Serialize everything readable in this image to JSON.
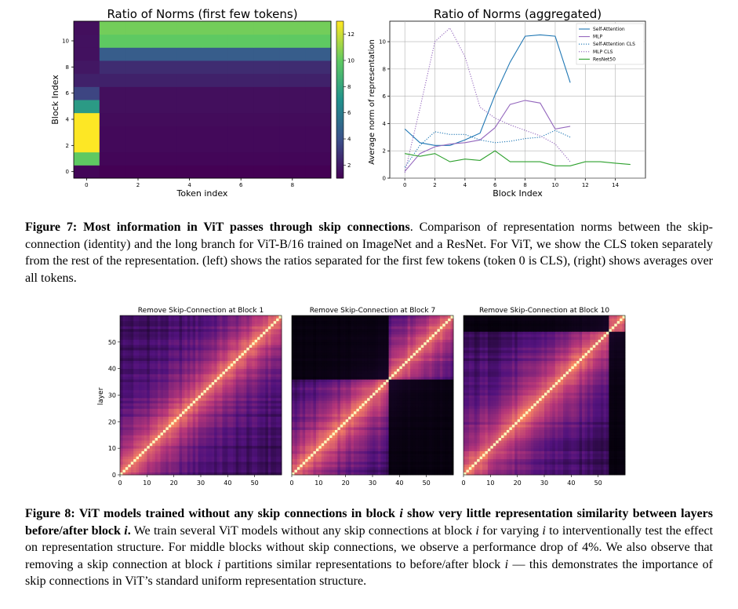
{
  "figure7": {
    "left_panel": {
      "title": "Ratio of Norms (first few tokens)",
      "xlabel": "Token index",
      "ylabel": "Block Index",
      "xticks": [
        "0",
        "2",
        "4",
        "6",
        "8"
      ],
      "yticks": [
        "0",
        "2",
        "4",
        "6",
        "8",
        "10"
      ],
      "colorbar_ticks": [
        "2",
        "4",
        "6",
        "8",
        "10",
        "12"
      ]
    },
    "right_panel": {
      "title": "Ratio of Norms (aggregated)",
      "xlabel": "Block Index",
      "ylabel": "Average norm of representation",
      "xticks": [
        "0",
        "2",
        "4",
        "6",
        "8",
        "10",
        "12",
        "14"
      ],
      "yticks": [
        "0",
        "2",
        "4",
        "6",
        "8",
        "10"
      ]
    },
    "caption_label": "Figure 7: Most information in ViT passes through skip connections",
    "caption_text": ". Comparison of representation norms between the skip-connection (identity) and the long branch for ViT-B/16 trained on ImageNet and a ResNet. For ViT, we show the CLS token separately from the rest of the representation. (left) shows the ratios separated for the first few tokens (token 0 is CLS), (right) shows averages over all tokens."
  },
  "figure8": {
    "panels": [
      {
        "title": "Remove Skip-Connection at Block 1",
        "split": 1
      },
      {
        "title": "Remove Skip-Connection at Block 7",
        "split": 7
      },
      {
        "title": "Remove Skip-Connection at Block 10",
        "split": 10
      }
    ],
    "ylabel": "layer",
    "xticks": [
      "0",
      "10",
      "20",
      "30",
      "40",
      "50"
    ],
    "yticks": [
      "0",
      "10",
      "20",
      "30",
      "40",
      "50"
    ],
    "caption_label_a": "Figure 8: ViT models trained without any skip connections in block ",
    "caption_label_var": "i",
    "caption_label_b": " show very little representation similarity between layers before/after block ",
    "caption_label_c": ".",
    "caption_p1": " We train several ViT models without any skip connections at block ",
    "caption_p2": " for varying ",
    "caption_p3": " to interventionally test the effect on representation structure. For middle blocks without skip connections, we observe a performance drop of ",
    "caption_pct": "4%",
    "caption_p4": ". We also observe that removing a skip connection at block ",
    "caption_p5": " partitions similar representations to before/after block ",
    "caption_p6": " — this demonstrates the importance of skip connections in ViT’s standard uniform representation structure."
  },
  "chart_data": [
    {
      "type": "heatmap",
      "title": "Ratio of Norms (first few tokens)",
      "xlabel": "Token index",
      "ylabel": "Block Index",
      "x": [
        0,
        1,
        2,
        3,
        4,
        5,
        6,
        7,
        8,
        9
      ],
      "y": [
        0,
        1,
        2,
        3,
        4,
        5,
        6,
        7,
        8,
        9,
        10,
        11
      ],
      "colorbar_range": [
        1,
        13
      ],
      "values": [
        [
          1.2,
          1.0,
          1.0,
          1.0,
          1.0,
          1.0,
          1.0,
          1.0,
          1.0,
          1.0
        ],
        [
          10.0,
          1.2,
          1.2,
          1.2,
          1.2,
          1.2,
          1.2,
          1.2,
          1.2,
          1.2
        ],
        [
          13.5,
          1.3,
          1.3,
          1.3,
          1.3,
          1.3,
          1.3,
          1.3,
          1.3,
          1.3
        ],
        [
          13.5,
          1.3,
          1.3,
          1.3,
          1.3,
          1.3,
          1.3,
          1.3,
          1.3,
          1.3
        ],
        [
          13.5,
          1.4,
          1.4,
          1.4,
          1.4,
          1.4,
          1.4,
          1.4,
          1.4,
          1.4
        ],
        [
          7.5,
          1.5,
          1.5,
          1.5,
          1.5,
          1.5,
          1.5,
          1.5,
          1.5,
          1.5
        ],
        [
          3.5,
          1.5,
          1.5,
          1.5,
          1.5,
          1.5,
          1.5,
          1.5,
          1.5,
          1.5
        ],
        [
          2.2,
          2.2,
          2.2,
          2.2,
          2.2,
          2.2,
          2.2,
          2.2,
          2.2,
          2.2
        ],
        [
          1.8,
          2.6,
          2.6,
          2.6,
          2.6,
          2.6,
          2.6,
          2.6,
          2.6,
          2.6
        ],
        [
          1.6,
          4.5,
          4.5,
          4.5,
          4.5,
          4.5,
          4.5,
          4.5,
          4.5,
          4.5
        ],
        [
          1.6,
          10.0,
          10.0,
          10.0,
          10.0,
          10.0,
          10.0,
          10.0,
          10.0,
          10.0
        ],
        [
          1.5,
          10.4,
          10.4,
          10.4,
          10.4,
          10.4,
          10.4,
          10.4,
          10.4,
          10.4
        ]
      ]
    },
    {
      "type": "line",
      "title": "Ratio of Norms (aggregated)",
      "xlabel": "Block Index",
      "ylabel": "Average norm of representation",
      "xlim": [
        -1,
        16
      ],
      "ylim": [
        0,
        11.5
      ],
      "legend_position": "top-right",
      "series": [
        {
          "name": "Self-Attention",
          "color": "#1f77b4",
          "dash": "solid",
          "x": [
            0,
            1,
            2,
            3,
            4,
            5,
            6,
            7,
            8,
            9,
            10,
            11
          ],
          "y": [
            3.6,
            2.6,
            2.4,
            2.4,
            2.8,
            3.3,
            6.1,
            8.5,
            10.4,
            10.5,
            10.4,
            7.0
          ]
        },
        {
          "name": "MLP",
          "color": "#9467bd",
          "dash": "solid",
          "x": [
            0,
            1,
            2,
            3,
            4,
            5,
            6,
            7,
            8,
            9,
            10,
            11
          ],
          "y": [
            0.5,
            1.8,
            2.3,
            2.5,
            2.6,
            2.8,
            3.7,
            5.4,
            5.7,
            5.5,
            3.6,
            3.8
          ]
        },
        {
          "name": "Self-Attention CLS",
          "color": "#1f77b4",
          "dash": "dotted",
          "x": [
            0,
            1,
            2,
            3,
            4,
            5,
            6,
            7,
            8,
            9,
            10,
            11
          ],
          "y": [
            0.8,
            2.4,
            3.4,
            3.2,
            3.2,
            2.8,
            2.6,
            2.7,
            2.9,
            3.0,
            3.5,
            3.0
          ]
        },
        {
          "name": "MLP CLS",
          "color": "#9467bd",
          "dash": "dotted",
          "x": [
            0,
            1,
            2,
            3,
            4,
            5,
            6,
            7,
            8,
            9,
            10,
            11
          ],
          "y": [
            0.4,
            5.1,
            10.0,
            11.0,
            8.9,
            5.2,
            4.4,
            3.9,
            3.5,
            3.1,
            2.5,
            1.2
          ]
        },
        {
          "name": "ResNet50",
          "color": "#2ca02c",
          "dash": "solid",
          "x": [
            0,
            1,
            2,
            3,
            4,
            5,
            6,
            7,
            8,
            9,
            10,
            11,
            12,
            13,
            14,
            15
          ],
          "y": [
            1.8,
            1.6,
            1.8,
            1.2,
            1.4,
            1.3,
            2.0,
            1.2,
            1.2,
            1.2,
            0.9,
            0.9,
            1.2,
            1.2,
            1.1,
            1.0
          ]
        }
      ]
    },
    {
      "type": "heatmap",
      "title": "Remove Skip-Connection at Block 1",
      "ylabel": "layer",
      "xlim": [
        0,
        60
      ],
      "ylim": [
        0,
        60
      ],
      "description_values": {
        "layers": 60,
        "partition_layer": 0
      }
    },
    {
      "type": "heatmap",
      "title": "Remove Skip-Connection at Block 7",
      "ylabel": "layer",
      "xlim": [
        0,
        60
      ],
      "ylim": [
        0,
        60
      ],
      "description_values": {
        "layers": 60,
        "partition_layer": 36
      }
    },
    {
      "type": "heatmap",
      "title": "Remove Skip-Connection at Block 10",
      "ylabel": "layer",
      "xlim": [
        0,
        60
      ],
      "ylim": [
        0,
        60
      ],
      "description_values": {
        "layers": 60,
        "partition_layer": 54
      }
    }
  ]
}
